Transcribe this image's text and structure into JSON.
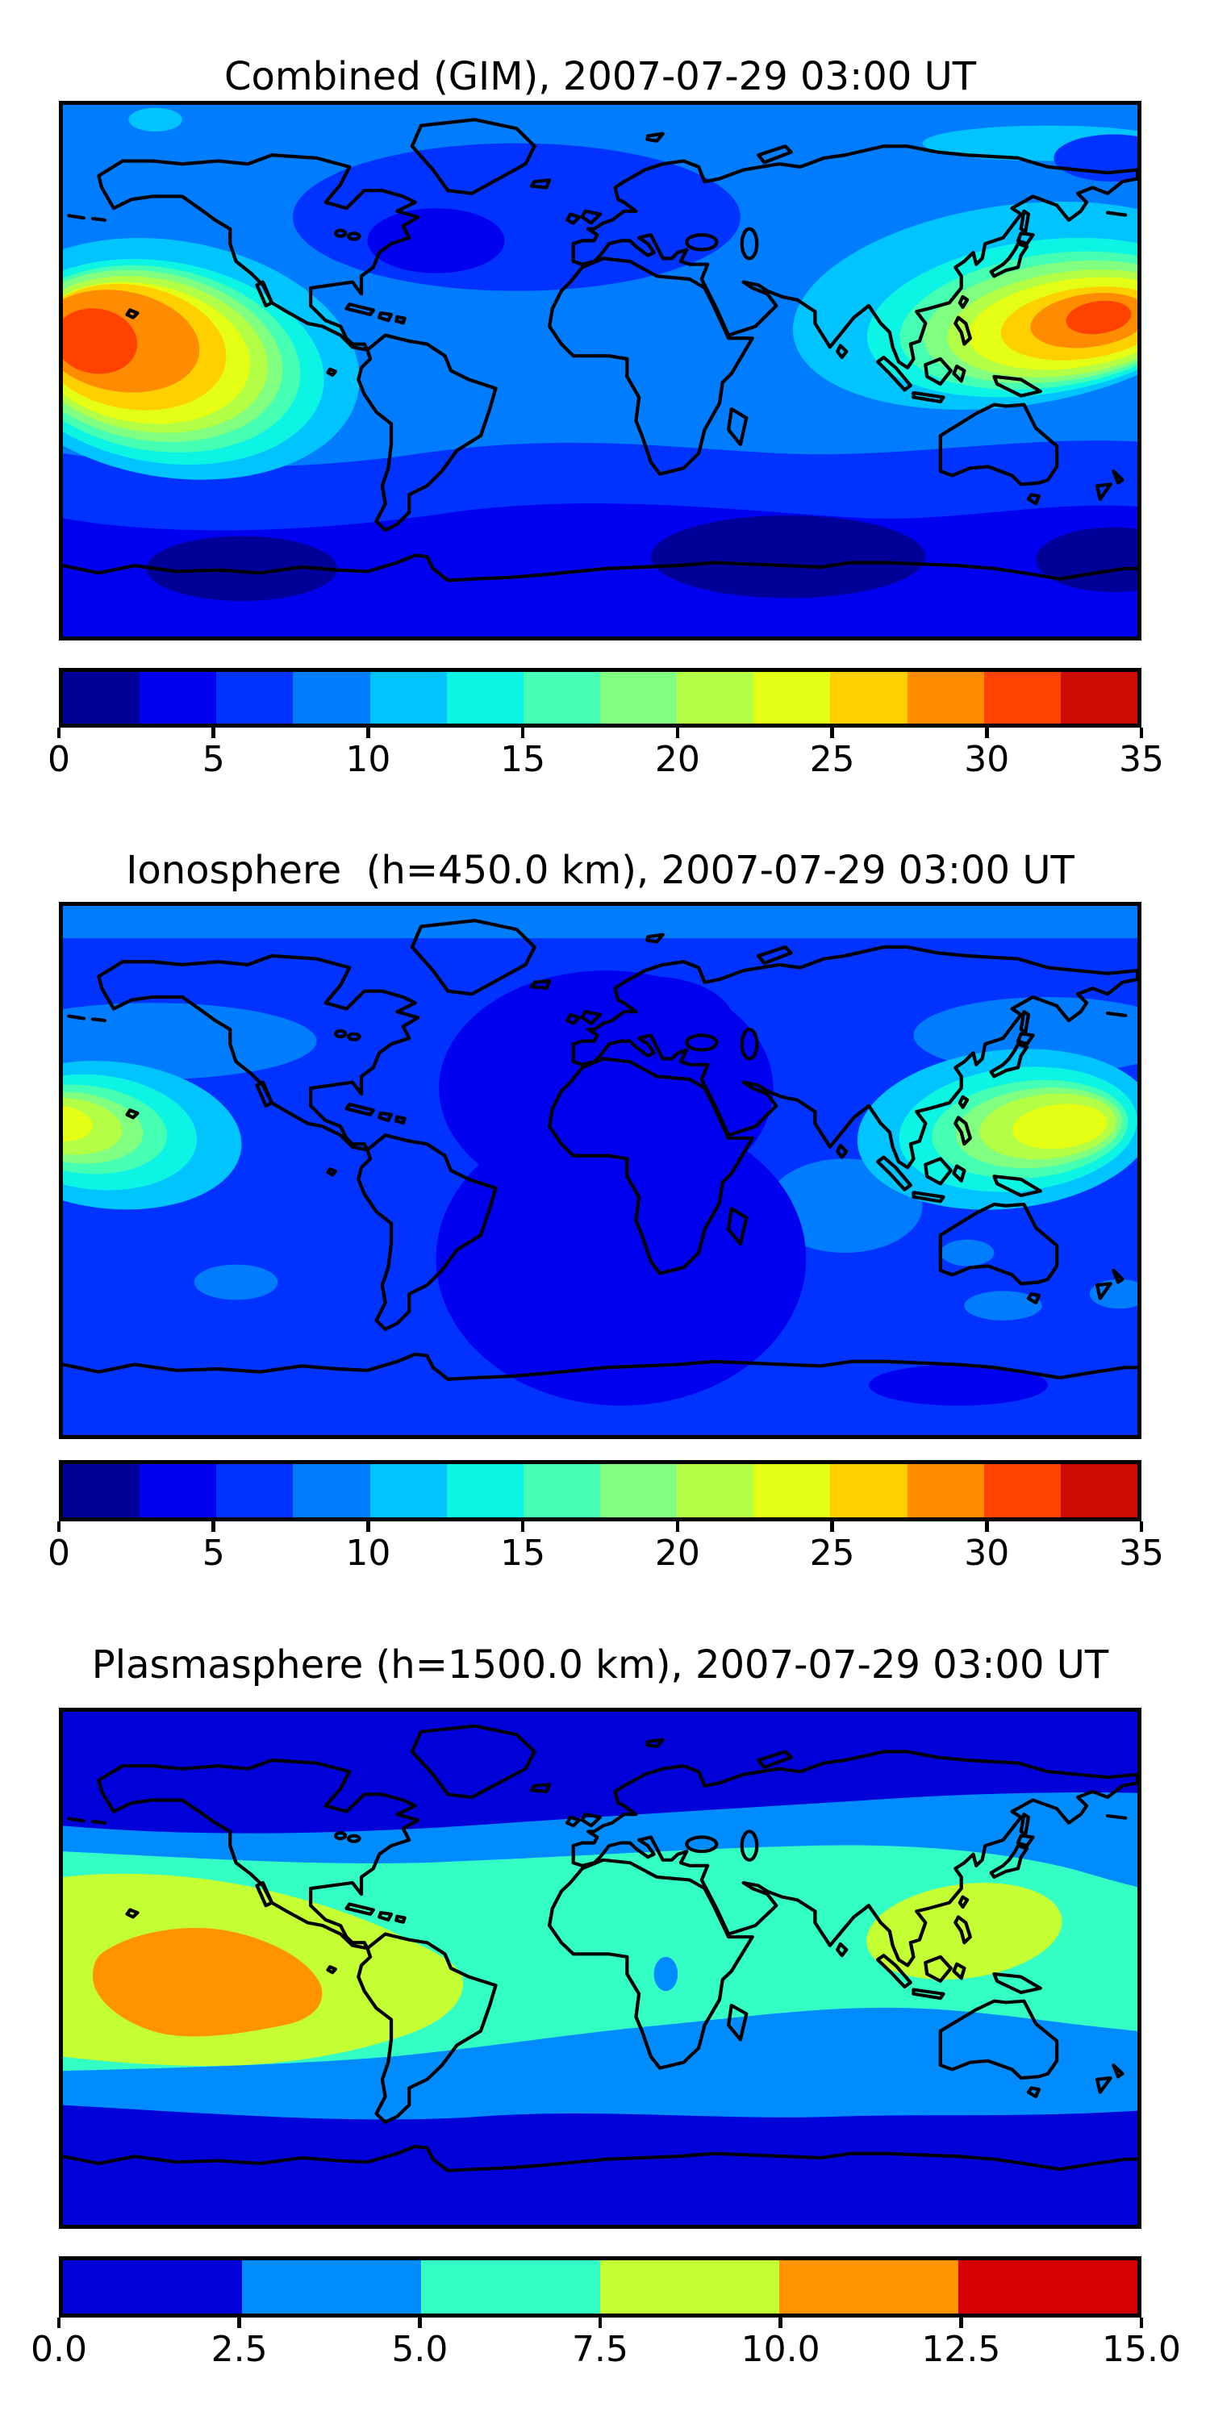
{
  "figure": {
    "background": "#ffffff"
  },
  "panels": [
    {
      "id": "combined",
      "title": "Combined (GIM), 2007-07-29 03:00 UT",
      "colorbar": {
        "min": 0,
        "max": 35,
        "tick_labels": [
          "0",
          "5",
          "10",
          "15",
          "20",
          "25",
          "30",
          "35"
        ],
        "colors": [
          "#000099",
          "#0000f1",
          "#0033ff",
          "#007cff",
          "#00c4ff",
          "#0cf4e4",
          "#45ffb2",
          "#80ff80",
          "#b2ff45",
          "#e4ff13",
          "#ffd000",
          "#ff8c00",
          "#ff4200",
          "#cc0c00"
        ]
      }
    },
    {
      "id": "ionosphere",
      "title": "Ionosphere  (h=450.0 km), 2007-07-29 03:00 UT",
      "colorbar": {
        "min": 0,
        "max": 35,
        "tick_labels": [
          "0",
          "5",
          "10",
          "15",
          "20",
          "25",
          "30",
          "35"
        ],
        "colors": [
          "#000099",
          "#0000f1",
          "#0033ff",
          "#007cff",
          "#00c4ff",
          "#0cf4e4",
          "#45ffb2",
          "#80ff80",
          "#b2ff45",
          "#e4ff13",
          "#ffd000",
          "#ff8c00",
          "#ff4200",
          "#cc0c00"
        ]
      }
    },
    {
      "id": "plasmasphere",
      "title": "Plasmasphere (h=1500.0 km), 2007-07-29 03:00 UT",
      "colorbar": {
        "min": 0,
        "max": 15,
        "tick_labels": [
          "0.0",
          "2.5",
          "5.0",
          "7.5",
          "10.0",
          "12.5",
          "15.0"
        ],
        "colors": [
          "#0000d9",
          "#008cff",
          "#33ffc4",
          "#c4ff33",
          "#ff9400",
          "#d60000"
        ]
      }
    }
  ],
  "chart_data": [
    {
      "type": "heatmap",
      "subtype": "filled-contour-world-map",
      "title": "Combined (GIM), 2007-07-29 03:00 UT",
      "layer": "Combined (GIM)",
      "date": "2007-07-29",
      "time_ut": "03:00",
      "colormap": "jet",
      "contour_levels": [
        0,
        2.5,
        5,
        7.5,
        10,
        12.5,
        15,
        17.5,
        20,
        22.5,
        25,
        27.5,
        30,
        32.5,
        35
      ],
      "colorbar_ticks": [
        0,
        5,
        10,
        15,
        20,
        25,
        30,
        35
      ],
      "colorbar_range": [
        0,
        35
      ],
      "map_extent": {
        "lon": [
          -180,
          180
        ],
        "lat": [
          -90,
          90
        ]
      },
      "grid": false,
      "features": [
        {
          "name": "west-pacific-daytime-peak",
          "lon": 150,
          "lat": 17,
          "approx_value": 32
        },
        {
          "name": "east-pacific-daytime-peak",
          "lon": -168,
          "lat": 8,
          "approx_value": 31
        },
        {
          "name": "north-atlantic-low",
          "lon": -50,
          "lat": 44,
          "approx_value": 3
        },
        {
          "name": "southern-indian-ocean-low",
          "lon": 63,
          "lat": -62,
          "approx_value": 2
        },
        {
          "name": "southeast-pacific-low",
          "lon": -120,
          "lat": -66,
          "approx_value": 2
        }
      ]
    },
    {
      "type": "heatmap",
      "subtype": "filled-contour-world-map",
      "title": "Ionosphere  (h=450.0 km), 2007-07-29 03:00 UT",
      "layer": "Ionosphere",
      "height_km": 450.0,
      "date": "2007-07-29",
      "time_ut": "03:00",
      "colormap": "jet",
      "contour_levels": [
        0,
        2.5,
        5,
        7.5,
        10,
        12.5,
        15,
        17.5,
        20,
        22.5,
        25,
        27.5,
        30,
        32.5,
        35
      ],
      "colorbar_ticks": [
        0,
        5,
        10,
        15,
        20,
        25,
        30,
        35
      ],
      "colorbar_range": [
        0,
        35
      ],
      "map_extent": {
        "lon": [
          -180,
          180
        ],
        "lat": [
          -90,
          90
        ]
      },
      "grid": false,
      "features": [
        {
          "name": "west-pacific-daytime-peak",
          "lon": 150,
          "lat": 13,
          "approx_value": 22
        },
        {
          "name": "east-pacific-daytime-peak",
          "lon": -176,
          "lat": 13,
          "approx_value": 22
        },
        {
          "name": "atlantic-africa-nighttime-low",
          "lon": 5,
          "lat": -5,
          "approx_value": 2
        }
      ]
    },
    {
      "type": "heatmap",
      "subtype": "filled-contour-world-map",
      "title": "Plasmasphere (h=1500.0 km), 2007-07-29 03:00 UT",
      "layer": "Plasmasphere",
      "height_km": 1500.0,
      "date": "2007-07-29",
      "time_ut": "03:00",
      "colormap": "jet",
      "contour_levels": [
        0,
        2.5,
        5,
        7.5,
        10,
        12.5,
        15
      ],
      "colorbar_ticks": [
        0.0,
        2.5,
        5.0,
        7.5,
        10.0,
        12.5,
        15.0
      ],
      "colorbar_range": [
        0,
        15
      ],
      "map_extent": {
        "lon": [
          -180,
          180
        ],
        "lat": [
          -90,
          90
        ]
      },
      "grid": false,
      "features": [
        {
          "name": "southeast-pacific-peak",
          "lon": -132,
          "lat": -5,
          "approx_value": 12
        },
        {
          "name": "southeast-asia-enhancement",
          "lon": 122,
          "lat": 10,
          "approx_value": 10
        },
        {
          "name": "central-africa-local-low",
          "lon": 22,
          "lat": -2,
          "approx_value": 4
        },
        {
          "name": "polar-lows",
          "lat_band": "poleward of 55",
          "approx_value": 2
        }
      ]
    }
  ]
}
